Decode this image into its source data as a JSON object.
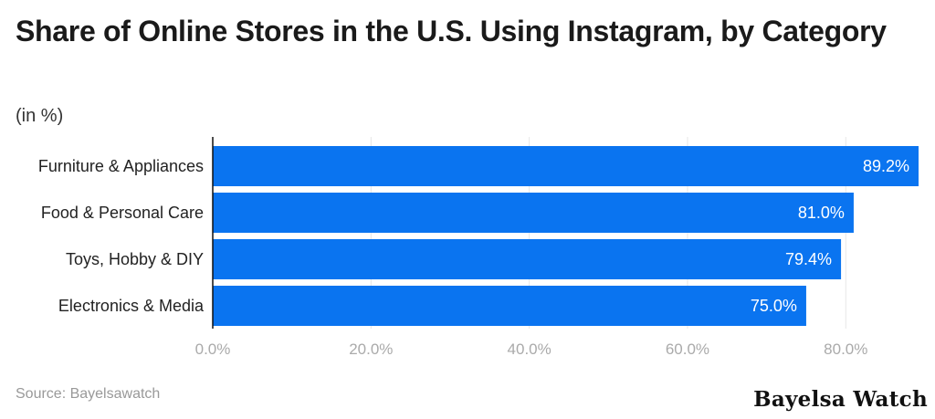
{
  "chart_data": {
    "type": "bar",
    "orientation": "horizontal",
    "title": "Share of Online Stores in the U.S. Using Instagram, by Category",
    "subtitle": "(in %)",
    "categories": [
      "Furniture & Appliances",
      "Food & Personal Care",
      "Toys, Hobby & DIY",
      "Electronics & Media"
    ],
    "values": [
      89.2,
      81.0,
      79.4,
      75.0
    ],
    "value_labels": [
      "89.2%",
      "81.0%",
      "79.4%",
      "75.0%"
    ],
    "xlim": [
      0,
      89.2
    ],
    "x_ticks": [
      0,
      20,
      40,
      60,
      80
    ],
    "x_tick_labels": [
      "0.0%",
      "20.0%",
      "40.0%",
      "60.0%",
      "80.0%"
    ],
    "grid": true,
    "legend": "none",
    "bar_color": "#0a74f0"
  },
  "source": "Source: Bayelsawatch",
  "brand": "Bayelsa Watch"
}
